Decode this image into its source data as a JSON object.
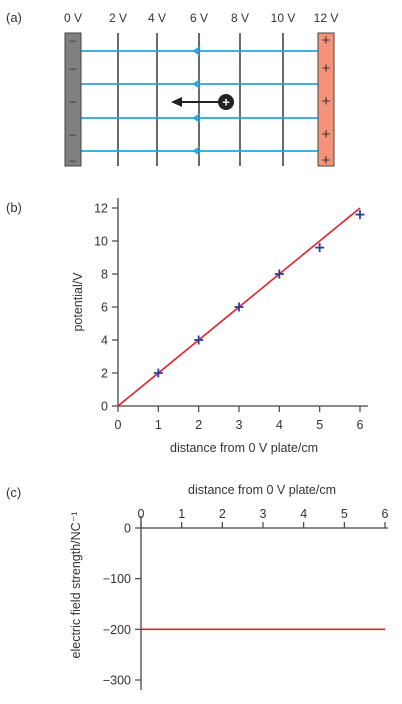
{
  "panel_a": {
    "label": "(a)",
    "voltages": [
      "0 V",
      "2 V",
      "4 V",
      "6 V",
      "8 V",
      "10 V",
      "12 V"
    ],
    "plate_signs": {
      "left": "–",
      "right": "+"
    },
    "field_line_color": "#29a3dc",
    "plate_left_color": "#808080",
    "plate_right_color": "#f4937a",
    "charge_symbol": "+"
  },
  "chart_data": [
    {
      "type": "scatter",
      "panel_label": "(b)",
      "xlabel": "distance from 0 V plate/cm",
      "ylabel": "potential/V",
      "xlim": [
        0,
        6
      ],
      "ylim": [
        0,
        12
      ],
      "xticks": [
        "0",
        "1",
        "2",
        "3",
        "4",
        "5",
        "6"
      ],
      "yticks": [
        "0",
        "2",
        "4",
        "6",
        "8",
        "10",
        "12"
      ],
      "points": [
        {
          "x": 1,
          "y": 2
        },
        {
          "x": 2,
          "y": 4
        },
        {
          "x": 3,
          "y": 6
        },
        {
          "x": 4,
          "y": 8
        },
        {
          "x": 5,
          "y": 9.6
        },
        {
          "x": 6,
          "y": 11.6
        }
      ],
      "fit_line": {
        "x": [
          0,
          6
        ],
        "y": [
          0,
          12
        ]
      },
      "marker_color": "#2b3d9e",
      "line_color": "#e0202a",
      "grid": false
    },
    {
      "type": "line",
      "panel_label": "(c)",
      "xlabel": "distance from 0 V plate/cm",
      "ylabel": "electric field strength/NC⁻¹",
      "xlim": [
        0,
        6
      ],
      "ylim": [
        -300,
        0
      ],
      "xticks": [
        "0",
        "1",
        "2",
        "3",
        "4",
        "5",
        "6"
      ],
      "yticks": [
        "0",
        "−100",
        "−200",
        "−300"
      ],
      "series": [
        {
          "x": [
            0,
            6
          ],
          "y": [
            -200,
            -200
          ]
        }
      ],
      "line_color": "#e0202a",
      "grid": false
    }
  ]
}
